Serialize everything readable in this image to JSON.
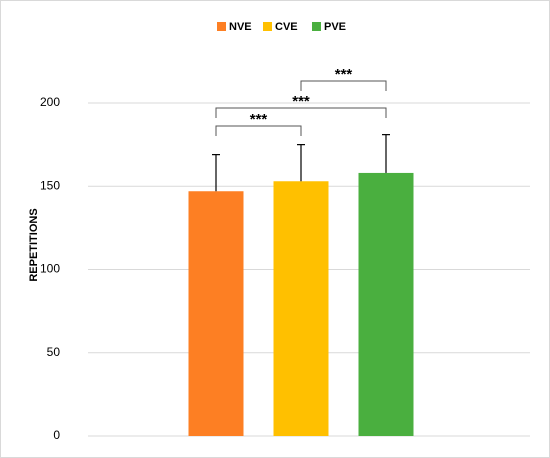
{
  "chart_data": {
    "type": "bar",
    "categories": [
      null
    ],
    "series": [
      {
        "name": "NVE",
        "color": "#fd7f23",
        "values": [
          147
        ],
        "errors": [
          22
        ]
      },
      {
        "name": "CVE",
        "color": "#ffc000",
        "values": [
          153
        ],
        "errors": [
          22
        ]
      },
      {
        "name": "PVE",
        "color": "#4aaf3f",
        "values": [
          158
        ],
        "errors": [
          23
        ]
      }
    ],
    "ylabel": "REPETITIONS",
    "ylim": [
      0,
      200
    ],
    "yticks": [
      0,
      50,
      100,
      150,
      200
    ],
    "grid": true,
    "legend": "top",
    "annotations": [
      {
        "text": "***",
        "between": [
          0,
          1
        ]
      },
      {
        "text": "***",
        "between": [
          0,
          2
        ]
      },
      {
        "text": "***",
        "between": [
          1,
          2
        ]
      }
    ]
  }
}
